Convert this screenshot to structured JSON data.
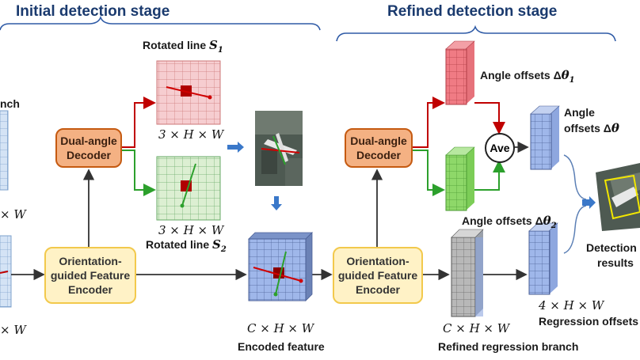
{
  "stages": {
    "initial_title": "Initial detection stage",
    "refined_title": "Refined detection stage"
  },
  "left_partial": {
    "branch_fragment": "nch",
    "dim_top": "× W",
    "dim_bottom": "× W"
  },
  "initial": {
    "decoder_line1": "Dual-angle",
    "decoder_line2": "Decoder",
    "encoder_line1": "Orientation-",
    "encoder_line2": "guided Feature",
    "encoder_line3": "Encoder",
    "rot1_label_text": "Rotated line",
    "rot1_label_sym": "S",
    "rot1_label_sub": "1",
    "rot1_dims": "3 × H × W",
    "rot2_dims": "3 × H × W",
    "rot2_label_text": "Rotated line",
    "rot2_label_sym": "S",
    "rot2_label_sub": "2",
    "encoded_dims": "C × H × W",
    "encoded_label": "Encoded feature"
  },
  "refined": {
    "decoder_line1": "Dual-angle",
    "decoder_line2": "Decoder",
    "encoder_line1": "Orientation-",
    "encoder_line2": "guided Feature",
    "encoder_line3": "Encoder",
    "angle1_text": "Angle offsets Δ",
    "angle1_sym": "θ",
    "angle1_sub": "1",
    "angle2_text": "Angle offsets Δ",
    "angle2_sym": "θ",
    "angle2_sub": "2",
    "ave": "Ave",
    "angle_line1": "Angle",
    "angle_line2_text": "offsets Δ",
    "angle_line2_sym": "θ",
    "detection_line1": "Detection",
    "detection_line2": "results",
    "reg_dims": "4 × H × W",
    "reg_label": "Regression offsets",
    "branch_dims": "C × H × W",
    "branch_label": "Refined regression branch"
  },
  "colors": {
    "title_blue": "#1a3a6e",
    "red_arrow": "#c00000",
    "green_arrow": "#2ca02c",
    "blue_arrow": "#3a78c9",
    "decoder_fill": "#f4b183",
    "encoder_fill": "#fff2c6"
  }
}
